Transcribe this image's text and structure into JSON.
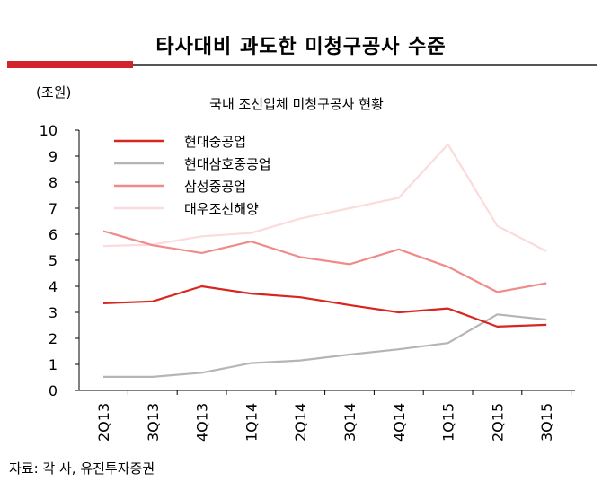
{
  "header": {
    "title": "타사대비 과도한 미청구공사 수준"
  },
  "source": "자료: 각 사, 유진투자증권",
  "chart_data": {
    "type": "line",
    "title": "국내 조선업체 미청구공사 현황",
    "ylabel": "(조원)",
    "xlabel": "",
    "categories": [
      "2Q13",
      "3Q13",
      "4Q13",
      "1Q14",
      "2Q14",
      "3Q14",
      "4Q14",
      "1Q15",
      "2Q15",
      "3Q15"
    ],
    "ylim": [
      0,
      10
    ],
    "yticks": [
      "0",
      "1",
      "2",
      "3",
      "4",
      "5",
      "6",
      "7",
      "8",
      "9",
      "10"
    ],
    "grid": false,
    "legend": "top-left",
    "series": [
      {
        "name": "현대중공업",
        "color": "#d7261e",
        "values": [
          3.35,
          3.42,
          4.0,
          3.72,
          3.58,
          3.28,
          3.0,
          3.15,
          2.45,
          2.52
        ]
      },
      {
        "name": "현대삼호중공업",
        "color": "#b5b5b5",
        "values": [
          0.52,
          0.52,
          0.68,
          1.05,
          1.15,
          1.38,
          1.58,
          1.82,
          2.92,
          2.72
        ]
      },
      {
        "name": "삼성중공업",
        "color": "#ef8c8a",
        "values": [
          6.12,
          5.58,
          5.28,
          5.72,
          5.12,
          4.85,
          5.42,
          4.75,
          3.78,
          4.12
        ]
      },
      {
        "name": "대우조선해양",
        "color": "#fbdbdb",
        "values": [
          5.55,
          5.6,
          5.92,
          6.05,
          6.6,
          7.0,
          7.4,
          9.45,
          6.32,
          5.35
        ]
      }
    ]
  }
}
